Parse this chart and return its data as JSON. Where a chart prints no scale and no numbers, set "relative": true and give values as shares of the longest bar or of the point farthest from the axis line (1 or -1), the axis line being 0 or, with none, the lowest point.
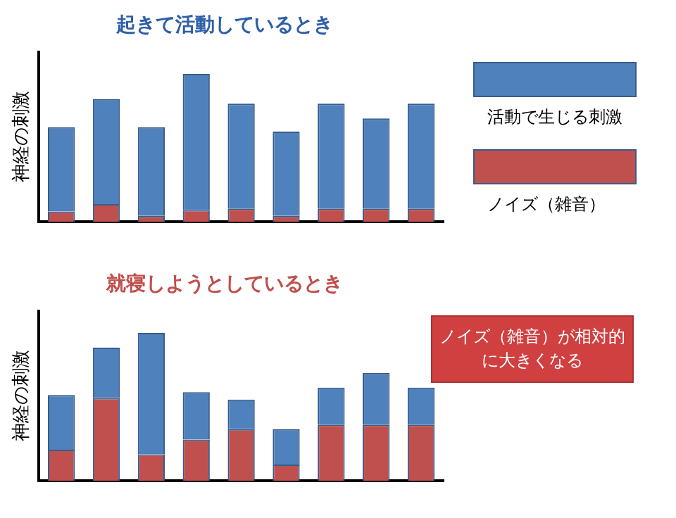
{
  "chart_data": [
    {
      "type": "bar",
      "title": "起きて活動しているとき",
      "ylabel": "神経の刺激",
      "categories": [
        null,
        null,
        null,
        null,
        null,
        null,
        null,
        null,
        null
      ],
      "stacked": true,
      "relative": true,
      "legend": "right",
      "grid": false,
      "series": [
        {
          "name": "ノイズ（雑音）",
          "color": "#c0504d",
          "values": [
            0.07,
            0.12,
            0.04,
            0.08,
            0.09,
            0.04,
            0.09,
            0.09,
            0.09
          ]
        },
        {
          "name": "活動で生じる刺激",
          "color": "#4f81bd",
          "values": [
            0.57,
            0.71,
            0.6,
            0.92,
            0.71,
            0.57,
            0.71,
            0.61,
            0.71
          ]
        }
      ]
    },
    {
      "type": "bar",
      "title": "就寝しようとしているとき",
      "ylabel": "神経の刺激",
      "categories": [
        null,
        null,
        null,
        null,
        null,
        null,
        null,
        null,
        null
      ],
      "stacked": true,
      "relative": true,
      "legend": false,
      "grid": false,
      "annotations": [
        "ノイズ（雑音）が相対的に大きくなる"
      ],
      "series": [
        {
          "color": "#c0504d",
          "values": [
            0.21,
            0.56,
            0.18,
            0.28,
            0.35,
            0.11,
            0.38,
            0.38,
            0.38
          ]
        },
        {
          "color": "#4f81bd",
          "values": [
            0.37,
            0.34,
            0.82,
            0.32,
            0.2,
            0.24,
            0.25,
            0.35,
            0.25
          ]
        }
      ]
    }
  ]
}
